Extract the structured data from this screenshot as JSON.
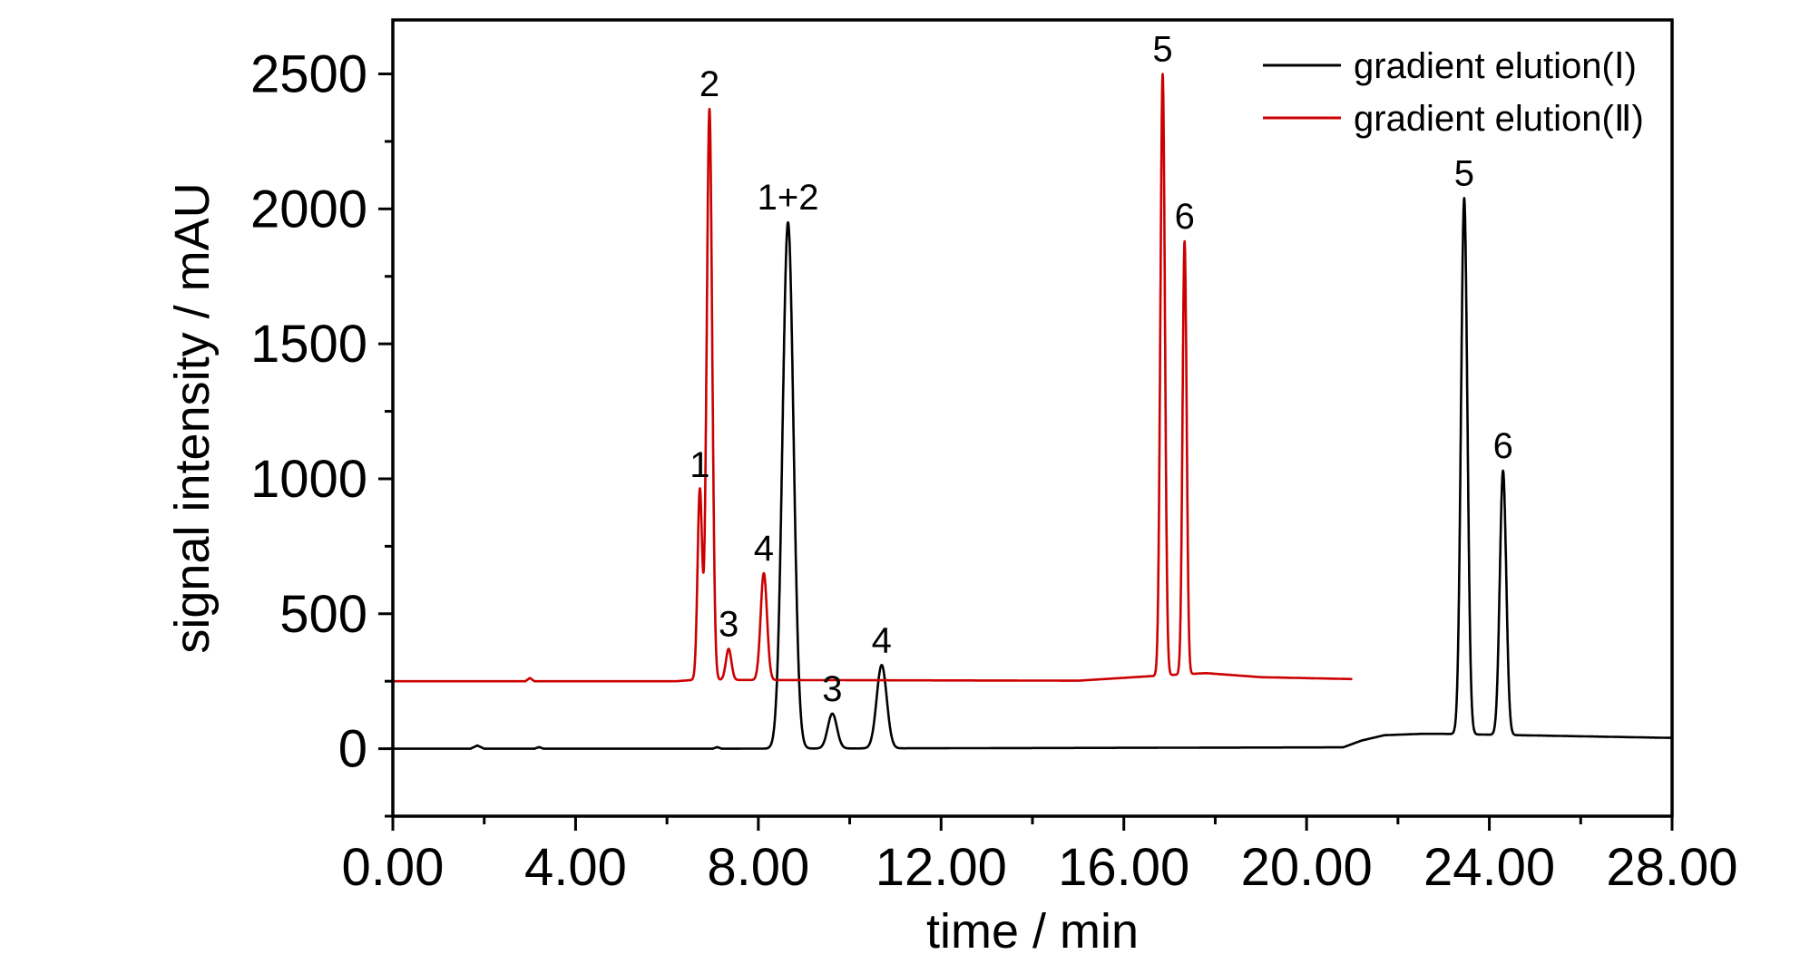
{
  "chart_data": {
    "type": "line",
    "xlabel": "time / min",
    "ylabel": "signal intensity / mAU",
    "xlim": [
      0,
      28
    ],
    "ylim": [
      -250,
      2700
    ],
    "x_ticks": [
      "0.00",
      "4.00",
      "8.00",
      "12.00",
      "16.00",
      "20.00",
      "24.00",
      "28.00"
    ],
    "y_ticks": [
      "0",
      "500",
      "1000",
      "1500",
      "2000",
      "2500"
    ],
    "grid": false,
    "legend_position": "top-right",
    "series": [
      {
        "name": "gradient elution(Ⅰ)",
        "color": "#000000",
        "baseline": [
          [
            0,
            0
          ],
          [
            1.7,
            0
          ],
          [
            1.85,
            12
          ],
          [
            2.0,
            0
          ],
          [
            3.1,
            0
          ],
          [
            3.2,
            6
          ],
          [
            3.3,
            0
          ],
          [
            7.0,
            0
          ],
          [
            7.1,
            6
          ],
          [
            7.2,
            0
          ],
          [
            20.8,
            5
          ],
          [
            21.2,
            30
          ],
          [
            21.7,
            50
          ],
          [
            22.5,
            55
          ],
          [
            23.0,
            55
          ],
          [
            28,
            40
          ]
        ],
        "peaks": [
          {
            "label": "1+2",
            "x": 8.65,
            "y": 1950,
            "width": 0.12
          },
          {
            "label": "3",
            "x": 9.62,
            "y": 130,
            "width": 0.1
          },
          {
            "label": "4",
            "x": 10.7,
            "y": 310,
            "width": 0.11
          },
          {
            "label": "5",
            "x": 23.45,
            "y": 2040,
            "width": 0.07
          },
          {
            "label": "6",
            "x": 24.3,
            "y": 1030,
            "width": 0.07
          }
        ],
        "x_end": 28
      },
      {
        "name": "gradient elution(Ⅱ)",
        "color": "#cc0000",
        "baseline": [
          [
            0,
            250
          ],
          [
            2.9,
            250
          ],
          [
            3.0,
            262
          ],
          [
            3.1,
            250
          ],
          [
            6.2,
            250
          ],
          [
            6.6,
            255
          ],
          [
            15.0,
            252
          ],
          [
            16.7,
            270
          ],
          [
            17.8,
            280
          ],
          [
            19.0,
            265
          ],
          [
            21.0,
            258
          ]
        ],
        "peaks": [
          {
            "label": "1",
            "x": 6.72,
            "y": 960,
            "width": 0.05
          },
          {
            "label": "2",
            "x": 6.93,
            "y": 2370,
            "width": 0.06
          },
          {
            "label": "3",
            "x": 7.35,
            "y": 370,
            "width": 0.06
          },
          {
            "label": "4",
            "x": 8.12,
            "y": 650,
            "width": 0.07
          },
          {
            "label": "5",
            "x": 16.85,
            "y": 2500,
            "width": 0.05
          },
          {
            "label": "6",
            "x": 17.33,
            "y": 1880,
            "width": 0.045
          }
        ],
        "x_end": 21
      }
    ]
  }
}
